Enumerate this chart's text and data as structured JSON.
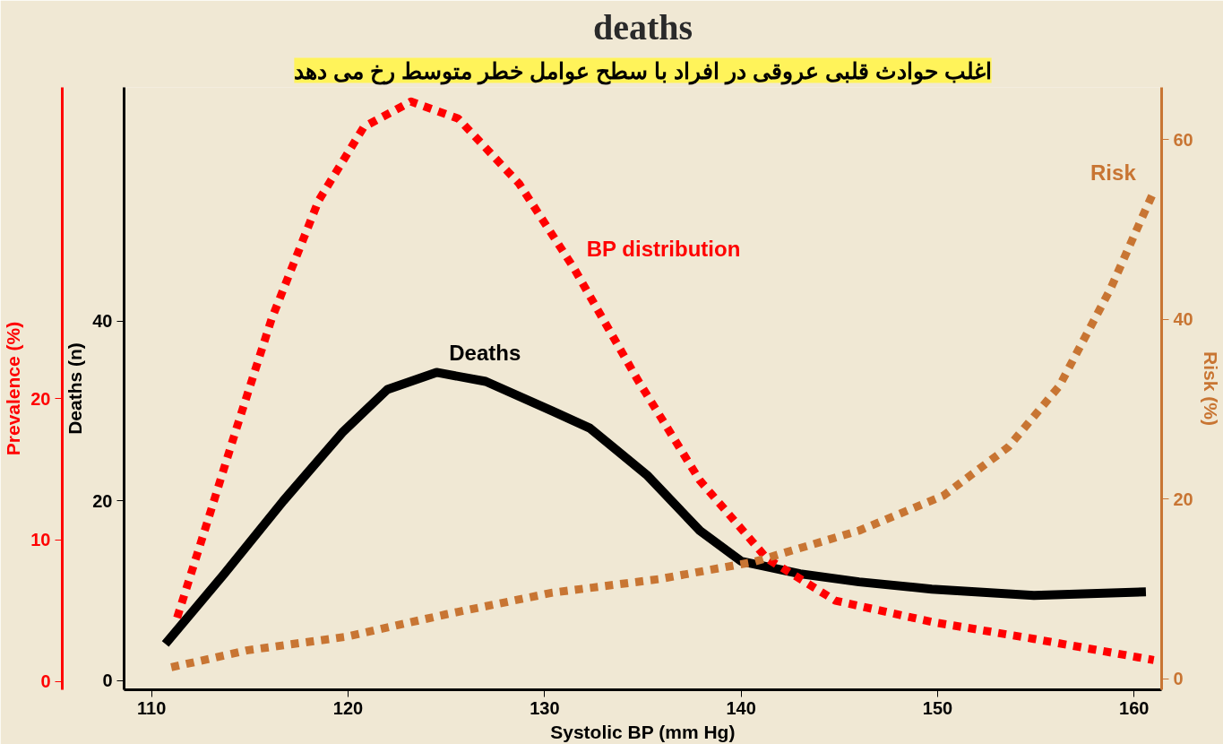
{
  "chart_data": {
    "type": "line",
    "title": "deaths",
    "xlabel": "Systolic BP (mm Hg)",
    "ylabel": "Deaths (n)",
    "y2label": "Prevalence (%)",
    "y3label": "Risk (%)",
    "annotations": [
      "اغلب حوادث قلبی عروقی در افراد با سطح عوامل خطر متوسط رخ می دهد"
    ],
    "xlim": [
      108.6,
      161.4
    ],
    "xticks": [
      110,
      120,
      130,
      140,
      150,
      160
    ],
    "ylim": [
      -1,
      66
    ],
    "yticks": [
      0,
      20,
      40
    ],
    "y2lim": [
      -0.6,
      42
    ],
    "y2ticks": [
      0,
      10,
      20
    ],
    "y3lim": [
      -1.2,
      65.8
    ],
    "y3ticks": [
      0,
      20,
      40,
      60
    ],
    "series": [
      {
        "name": "Deaths",
        "color": "#000000",
        "axis": "y",
        "line_style": "solid",
        "x": [
          110.7,
          113.7,
          116.7,
          119.7,
          122,
          124.5,
          127,
          130.4,
          132.3,
          135.2,
          137.9,
          140,
          143,
          146,
          149.7,
          154.9,
          160.6
        ],
        "values": [
          4.1,
          11.9,
          20,
          27.6,
          32.4,
          34.3,
          33.3,
          30,
          28.1,
          22.9,
          16.7,
          13.3,
          11.9,
          11,
          10.2,
          9.5,
          9.9
        ]
      },
      {
        "name": "BP distribution",
        "color": "#ff0000",
        "axis": "y2",
        "line_style": "dotted",
        "x": [
          111.3,
          112.8,
          114.3,
          116.1,
          118.5,
          120.8,
          123.2,
          125.6,
          128.7,
          131.5,
          134.7,
          137.9,
          141.3,
          144.8,
          149.7,
          154.9,
          161
        ],
        "values": [
          4.5,
          11.1,
          17.8,
          25.6,
          34,
          39.2,
          41,
          39.8,
          35.2,
          29.2,
          21.4,
          14.2,
          8.7,
          5.7,
          4.2,
          3,
          1.5
        ]
      },
      {
        "name": "Risk",
        "color": "#c87533",
        "axis": "y3",
        "line_style": "dotted",
        "x": [
          111,
          114.9,
          119.9,
          125,
          130.4,
          135.8,
          140.6,
          146,
          150.3,
          153.6,
          156.2,
          158.8,
          160.4,
          161
        ],
        "values": [
          1.3,
          3.2,
          4.7,
          7.2,
          9.6,
          11.1,
          13,
          16.5,
          20.4,
          25.8,
          32.6,
          43.4,
          51.3,
          54.2
        ]
      }
    ]
  }
}
